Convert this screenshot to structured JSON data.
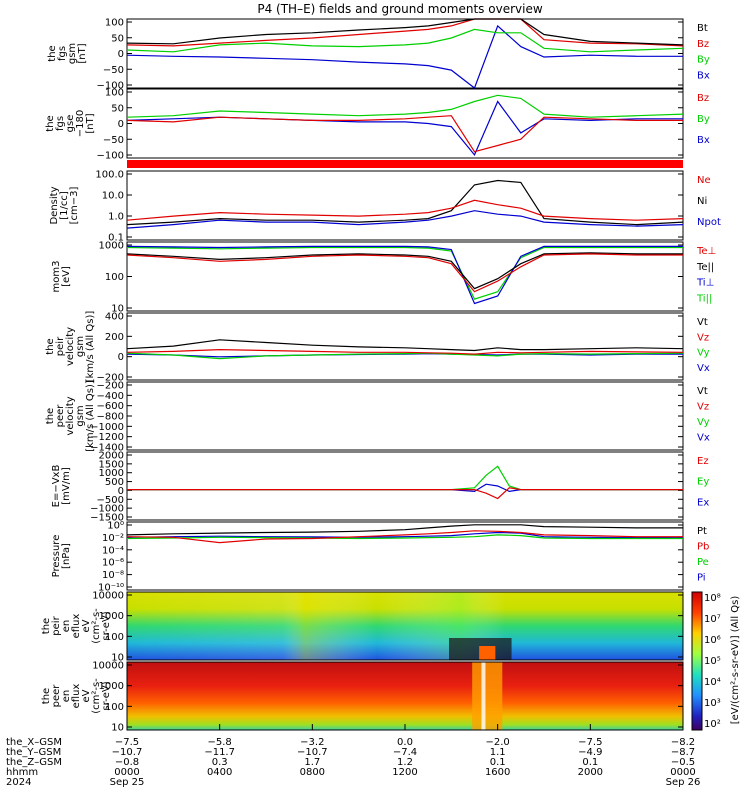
{
  "title": "P4 (TH–E) fields and ground moments overview",
  "colors": {
    "black": "#000000",
    "red": "#e00000",
    "green": "#00d000",
    "blue": "#0000d0"
  },
  "panels": [
    {
      "ylabel": [
        "the",
        "fgs",
        "gsm",
        "[nT]"
      ],
      "ticks": [
        "100",
        "50",
        "0",
        "−50",
        "−100"
      ],
      "legend": [
        {
          "text": "Bt",
          "color": "#000000"
        },
        {
          "text": "Bz",
          "color": "#e00000"
        },
        {
          "text": "By",
          "color": "#00d000"
        },
        {
          "text": "Bx",
          "color": "#0000d0"
        }
      ]
    },
    {
      "ylabel": [
        "the",
        "fgs",
        "gse",
        "−180",
        "[nT]"
      ],
      "ticks": [
        "100",
        "50",
        "0",
        "−50",
        "−100"
      ],
      "legend": [
        {
          "text": "Bz",
          "color": "#e00000"
        },
        {
          "text": "By",
          "color": "#00d000"
        },
        {
          "text": "Bx",
          "color": "#0000d0"
        }
      ]
    },
    {
      "ylabel": [
        "Density",
        "[1/cc]",
        "[cm−3]"
      ],
      "ticks": [
        "100.0",
        "10.0",
        "1.0",
        "0.1"
      ],
      "legend": [
        {
          "text": "Ne",
          "color": "#e00000"
        },
        {
          "text": "Ni",
          "color": "#000000"
        },
        {
          "text": "Npot",
          "color": "#0000d0"
        }
      ]
    },
    {
      "ylabel": [
        "mom3",
        "[eV]"
      ],
      "ticks": [
        "1000",
        "100",
        "10"
      ],
      "legend": [
        {
          "text": "Te⊥",
          "color": "#e00000"
        },
        {
          "text": "Te||",
          "color": "#000000"
        },
        {
          "text": "Ti⊥",
          "color": "#0000d0"
        },
        {
          "text": "Ti||",
          "color": "#00d000"
        }
      ]
    },
    {
      "ylabel": [
        "the",
        "peir",
        "velocity",
        "gsm",
        "[km/s (All Qs)]"
      ],
      "ticks": [
        "400",
        "200",
        "0",
        "−200"
      ],
      "legend": [
        {
          "text": "Vt",
          "color": "#000000"
        },
        {
          "text": "Vz",
          "color": "#e00000"
        },
        {
          "text": "Vy",
          "color": "#00d000"
        },
        {
          "text": "Vx",
          "color": "#0000d0"
        }
      ]
    },
    {
      "ylabel": [
        "the",
        "peer",
        "velocity",
        "gsm",
        "[km/s (All Qs)]"
      ],
      "ticks": [
        "−200",
        "−400",
        "−600",
        "−800",
        "−1000",
        "−1200",
        "−1400"
      ],
      "legend": [
        {
          "text": "Vt",
          "color": "#000000"
        },
        {
          "text": "Vz",
          "color": "#e00000"
        },
        {
          "text": "Vy",
          "color": "#00d000"
        },
        {
          "text": "Vx",
          "color": "#0000d0"
        }
      ]
    },
    {
      "ylabel": [
        "E=−VxB",
        "[mV/m]"
      ],
      "ticks": [
        "2000",
        "1500",
        "1000",
        "500",
        "0",
        "−500",
        "−1000",
        "−1500"
      ],
      "legend": [
        {
          "text": "Ez",
          "color": "#e00000"
        },
        {
          "text": "Ey",
          "color": "#00d000"
        },
        {
          "text": "Ex",
          "color": "#0000d0"
        }
      ]
    },
    {
      "ylabel": [
        "Pressure",
        "[nPa]"
      ],
      "ticks": [
        "10⁰",
        "10⁻²",
        "10⁻⁴",
        "10⁻⁶",
        "10⁻⁸",
        "10⁻¹⁰"
      ],
      "legend": [
        {
          "text": "Pt",
          "color": "#000000"
        },
        {
          "text": "Pb",
          "color": "#e00000"
        },
        {
          "text": "Pe",
          "color": "#00d000"
        },
        {
          "text": "Pi",
          "color": "#0000d0"
        }
      ]
    },
    {
      "ylabel": [
        "the",
        "peir",
        "en",
        "eflux",
        "eV",
        "(cm²-s-",
        "sr-eV)"
      ],
      "ticks": [
        "10000",
        "1000",
        "100",
        "10"
      ],
      "legend": []
    },
    {
      "ylabel": [
        "the",
        "peer",
        "en",
        "eflux",
        "eV",
        "(cm²-s-",
        "sr-eV)"
      ],
      "ticks": [
        "10000",
        "1000",
        "100",
        "10"
      ],
      "legend": []
    }
  ],
  "colorbar": {
    "ticks": [
      "10⁸",
      "10⁷",
      "10⁶",
      "10⁵",
      "10⁴",
      "10³",
      "10²"
    ],
    "label": "[eV/(cm²-s-sr-eV)] (All Qs)"
  },
  "ephemeris": {
    "rows": [
      {
        "label": "the_X–GSM",
        "values": [
          "−7.5",
          "−5.8",
          "−3.2",
          "0.0",
          "−2.0",
          "−7.5",
          "−8.2"
        ]
      },
      {
        "label": "the_Y–GSM",
        "values": [
          "−10.7",
          "−11.7",
          "−10.7",
          "−7.4",
          "1.1",
          "−4.9",
          "−8.7"
        ]
      },
      {
        "label": "the_Z–GSM",
        "values": [
          "−0.8",
          "0.3",
          "1.7",
          "1.2",
          "0.1",
          "0.1",
          "−0.5"
        ]
      },
      {
        "label": "hhmm",
        "values": [
          "0000",
          "0400",
          "0800",
          "1200",
          "1600",
          "2000",
          "0000"
        ]
      },
      {
        "label": "2024",
        "values": [
          "Sep 25",
          "",
          "",
          "",
          "",
          "",
          "Sep 26"
        ]
      }
    ]
  },
  "chart_data": {
    "type": "line",
    "title": "P4 (TH–E) fields and ground moments overview",
    "x_ticks_hhmm": [
      "0000",
      "0400",
      "0800",
      "1200",
      "1600",
      "2000",
      "0000"
    ],
    "xlim_hours": [
      0,
      24
    ],
    "panels": [
      {
        "name": "the fgs gsm [nT]",
        "ylim": [
          -100,
          100
        ],
        "x": [
          0,
          2,
          4,
          6,
          8,
          10,
          12,
          13,
          14,
          15,
          16,
          17,
          18,
          20,
          22,
          24
        ],
        "series": [
          {
            "name": "Bt",
            "values": [
              30,
              28,
              45,
              55,
              60,
              68,
              75,
              80,
              90,
              100,
              100,
              100,
              55,
              35,
              30,
              25
            ]
          },
          {
            "name": "Bz",
            "values": [
              25,
              22,
              30,
              38,
              45,
              55,
              65,
              70,
              80,
              100,
              100,
              100,
              40,
              30,
              28,
              22
            ]
          },
          {
            "name": "By",
            "values": [
              10,
              5,
              25,
              30,
              22,
              20,
              25,
              30,
              45,
              70,
              60,
              60,
              15,
              5,
              10,
              15
            ]
          },
          {
            "name": "Bx",
            "values": [
              -5,
              -8,
              -10,
              -14,
              -18,
              -25,
              -30,
              -35,
              -48,
              -100,
              80,
              20,
              -10,
              -5,
              -8,
              -8
            ]
          }
        ]
      },
      {
        "name": "the fgs gse−180 [nT]",
        "ylim": [
          -120,
          100
        ],
        "x": [
          0,
          2,
          4,
          6,
          8,
          10,
          12,
          13,
          14,
          15,
          16,
          17,
          18,
          20,
          22,
          24
        ],
        "series": [
          {
            "name": "Bz",
            "values": [
              0,
              -5,
              10,
              5,
              0,
              0,
              5,
              10,
              15,
              -100,
              -80,
              -60,
              10,
              5,
              0,
              0
            ]
          },
          {
            "name": "By",
            "values": [
              10,
              15,
              30,
              25,
              20,
              15,
              20,
              25,
              35,
              60,
              80,
              70,
              20,
              10,
              15,
              20
            ]
          },
          {
            "name": "Bx",
            "values": [
              0,
              5,
              10,
              5,
              0,
              -5,
              -5,
              -10,
              -20,
              -110,
              60,
              -40,
              5,
              0,
              5,
              5
            ]
          }
        ]
      },
      {
        "name": "Density [cm−3]",
        "ylim_log": [
          0.05,
          150
        ],
        "x": [
          0,
          2,
          4,
          6,
          8,
          10,
          12,
          13,
          14,
          15,
          16,
          17,
          18,
          20,
          22,
          24
        ],
        "series": [
          {
            "name": "Ne",
            "values": [
              0.5,
              0.8,
              1.2,
              1.0,
              0.9,
              0.8,
              1.0,
              1.2,
              2.0,
              5.0,
              3.0,
              2.0,
              0.8,
              0.6,
              0.5,
              0.6
            ]
          },
          {
            "name": "Ni",
            "values": [
              0.3,
              0.4,
              0.6,
              0.5,
              0.5,
              0.4,
              0.5,
              0.6,
              1.5,
              30.0,
              50.0,
              40.0,
              0.6,
              0.4,
              0.3,
              0.4
            ]
          },
          {
            "name": "Npot",
            "values": [
              0.2,
              0.3,
              0.5,
              0.4,
              0.4,
              0.3,
              0.4,
              0.5,
              0.8,
              1.5,
              1.0,
              0.8,
              0.4,
              0.3,
              0.25,
              0.3
            ]
          }
        ]
      },
      {
        "name": "mom3 [eV]",
        "ylim_log": [
          5,
          3000
        ],
        "x": [
          0,
          2,
          4,
          6,
          8,
          10,
          12,
          13,
          14,
          15,
          16,
          17,
          18,
          20,
          22,
          24
        ],
        "series": [
          {
            "name": "Te⊥",
            "values": [
              900,
              700,
              500,
              600,
              800,
              900,
              800,
              700,
              400,
              30,
              80,
              300,
              900,
              1000,
              900,
              900
            ]
          },
          {
            "name": "Te||",
            "values": [
              1000,
              800,
              600,
              700,
              900,
              1000,
              900,
              800,
              500,
              40,
              100,
              400,
              1000,
              1100,
              1000,
              1000
            ]
          },
          {
            "name": "Ti⊥",
            "values": [
              2000,
              1900,
              1800,
              1900,
              2000,
              2000,
              2000,
              1900,
              1500,
              10,
              20,
              800,
              2000,
              2000,
              2000,
              2000
            ]
          },
          {
            "name": "Ti||",
            "values": [
              1800,
              1700,
              1600,
              1700,
              1800,
              1800,
              1800,
              1700,
              1300,
              15,
              30,
              700,
              1800,
              1800,
              1800,
              1800
            ]
          }
        ]
      },
      {
        "name": "the peir velocity gsm [km/s (All Qs)]",
        "ylim": [
          -300,
          450
        ],
        "x": [
          0,
          2,
          4,
          6,
          8,
          10,
          12,
          13,
          14,
          15,
          16,
          17,
          18,
          20,
          22,
          24
        ],
        "series": [
          {
            "name": "Vt",
            "values": [
              50,
              80,
              150,
              120,
              90,
              70,
              60,
              50,
              40,
              30,
              60,
              40,
              40,
              50,
              60,
              50
            ]
          },
          {
            "name": "Vz",
            "values": [
              10,
              20,
              40,
              30,
              20,
              10,
              10,
              5,
              0,
              -10,
              10,
              5,
              10,
              20,
              15,
              10
            ]
          },
          {
            "name": "Vy",
            "values": [
              0,
              -20,
              -60,
              -30,
              -20,
              -10,
              -5,
              0,
              -10,
              -20,
              -30,
              -10,
              -5,
              -10,
              -5,
              0
            ]
          },
          {
            "name": "Vx",
            "values": [
              -10,
              -20,
              -40,
              -30,
              -20,
              -15,
              -10,
              -5,
              -10,
              -15,
              -20,
              -10,
              -10,
              -20,
              -10,
              -10
            ]
          }
        ]
      },
      {
        "name": "the peer velocity gsm [km/s (All Qs)]",
        "ylim": [
          -1500,
          0
        ],
        "series": []
      },
      {
        "name": "E=−VxB [mV/m]",
        "ylim": [
          -1700,
          2100
        ],
        "x": [
          0,
          4,
          8,
          12,
          14,
          15,
          15.5,
          16,
          16.5,
          17,
          18,
          20,
          24
        ],
        "series": [
          {
            "name": "Ez",
            "values": [
              0,
              0,
              0,
              0,
              0,
              0,
              -200,
              -500,
              100,
              0,
              0,
              0,
              0
            ]
          },
          {
            "name": "Ey",
            "values": [
              0,
              0,
              0,
              0,
              0,
              100,
              800,
              1300,
              200,
              0,
              0,
              0,
              0
            ]
          },
          {
            "name": "Ex",
            "values": [
              0,
              0,
              0,
              0,
              0,
              -100,
              300,
              200,
              -100,
              0,
              0,
              0,
              0
            ]
          }
        ]
      },
      {
        "name": "Pressure [nPa]",
        "ylim_log": [
          1e-11,
          3
        ],
        "x": [
          0,
          2,
          4,
          6,
          8,
          10,
          12,
          13,
          14,
          15,
          16,
          17,
          18,
          20,
          22,
          24
        ],
        "series": [
          {
            "name": "Pt",
            "values": [
              0.02,
              0.03,
              0.04,
              0.05,
              0.06,
              0.08,
              0.15,
              0.3,
              0.6,
              1.0,
              1.0,
              1.0,
              0.5,
              0.4,
              0.3,
              0.3
            ]
          },
          {
            "name": "Pb",
            "values": [
              0.01,
              0.008,
              0.001,
              0.004,
              0.005,
              0.01,
              0.02,
              0.03,
              0.05,
              0.1,
              0.08,
              0.05,
              0.02,
              0.015,
              0.01,
              0.01
            ]
          },
          {
            "name": "Pe",
            "values": [
              0.005,
              0.006,
              0.008,
              0.007,
              0.006,
              0.005,
              0.006,
              0.007,
              0.008,
              0.01,
              0.02,
              0.015,
              0.006,
              0.005,
              0.005,
              0.005
            ]
          },
          {
            "name": "Pi",
            "values": [
              0.008,
              0.01,
              0.012,
              0.01,
              0.009,
              0.008,
              0.01,
              0.012,
              0.015,
              0.03,
              0.05,
              0.04,
              0.01,
              0.008,
              0.007,
              0.008
            ]
          }
        ]
      },
      {
        "name": "the peir en eflux",
        "type": "heatmap",
        "ylim_log": [
          5,
          25000
        ]
      },
      {
        "name": "the peer en eflux",
        "type": "heatmap",
        "ylim_log": [
          5,
          25000
        ]
      }
    ]
  }
}
